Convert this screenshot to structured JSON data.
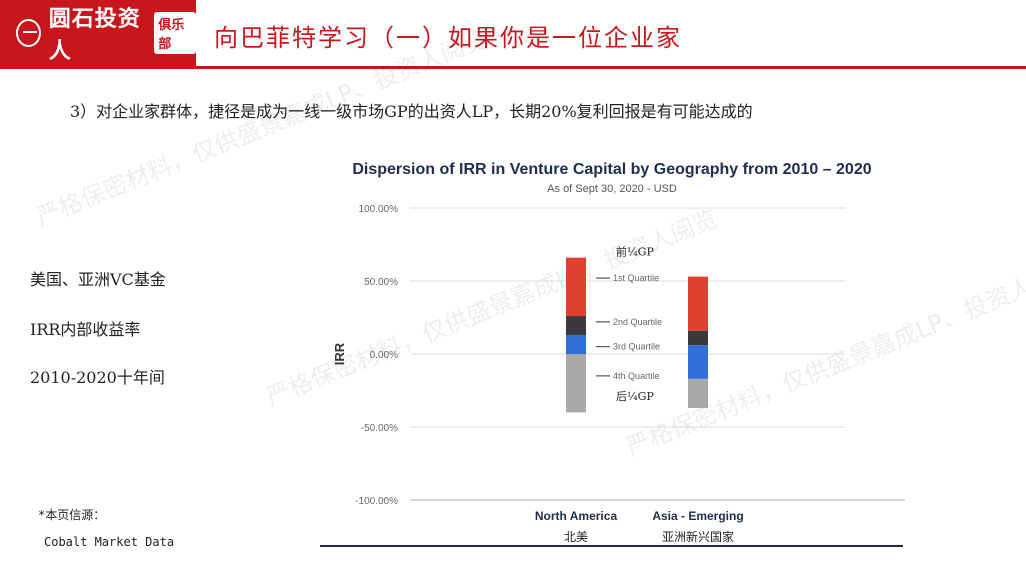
{
  "header": {
    "logo_text": "圆石投资人",
    "logo_badge": "俱乐部",
    "title": "向巴菲特学习（一）如果你是一位企业家"
  },
  "subtitle": "3）对企业家群体，捷径是成为一线一级市场GP的出资人LP，长期20%复利回报是有可能达成的",
  "left_notes": [
    "美国、亚洲VC基金",
    "IRR内部收益率",
    "2010-2020十年间"
  ],
  "source": {
    "label": "*本页信源：",
    "value": "Cobalt Market Data"
  },
  "watermarks": [
    "严格保密材料，仅供盛景嘉成LP、投资人阅览"
  ],
  "colors": {
    "brand_red": "#c8161d",
    "q1": "#e0412f",
    "q2": "#3a3a3a",
    "q3": "#2f6fd8",
    "q4": "#a8a8a8",
    "chart_title": "#1f2d4e"
  },
  "chart_data": {
    "type": "bar",
    "title": "Dispersion of IRR in Venture Capital by Geography from 2010 – 2020",
    "subtitle": "As of Sept 30, 2020 - USD",
    "ylabel": "IRR",
    "ylim": [
      -100,
      100
    ],
    "yticks": [
      "100.00%",
      "50.00%",
      "0.00%",
      "-50.00%",
      "-100.00%"
    ],
    "ytick_values": [
      100,
      50,
      0,
      -50,
      -100
    ],
    "categories": [
      "North America",
      "Asia - Emerging"
    ],
    "category_cn": [
      "北美",
      "亚洲新兴国家"
    ],
    "boxes": [
      {
        "category": "North America",
        "q4_low": -40,
        "q3_low": 0,
        "median": 13,
        "q1_low": 26,
        "top": 66
      },
      {
        "category": "Asia - Emerging",
        "q4_low": -37,
        "q3_low": -17,
        "median": 6,
        "q1_low": 16,
        "top": 53
      }
    ],
    "quartile_labels": [
      "1st Quartile",
      "2nd Quartile",
      "3rd Quartile",
      "4th Quartile"
    ],
    "quartile_label_values": [
      52,
      22,
      5,
      -15
    ],
    "annotation_top": "前¼GP",
    "annotation_bottom": "后¼GP"
  }
}
